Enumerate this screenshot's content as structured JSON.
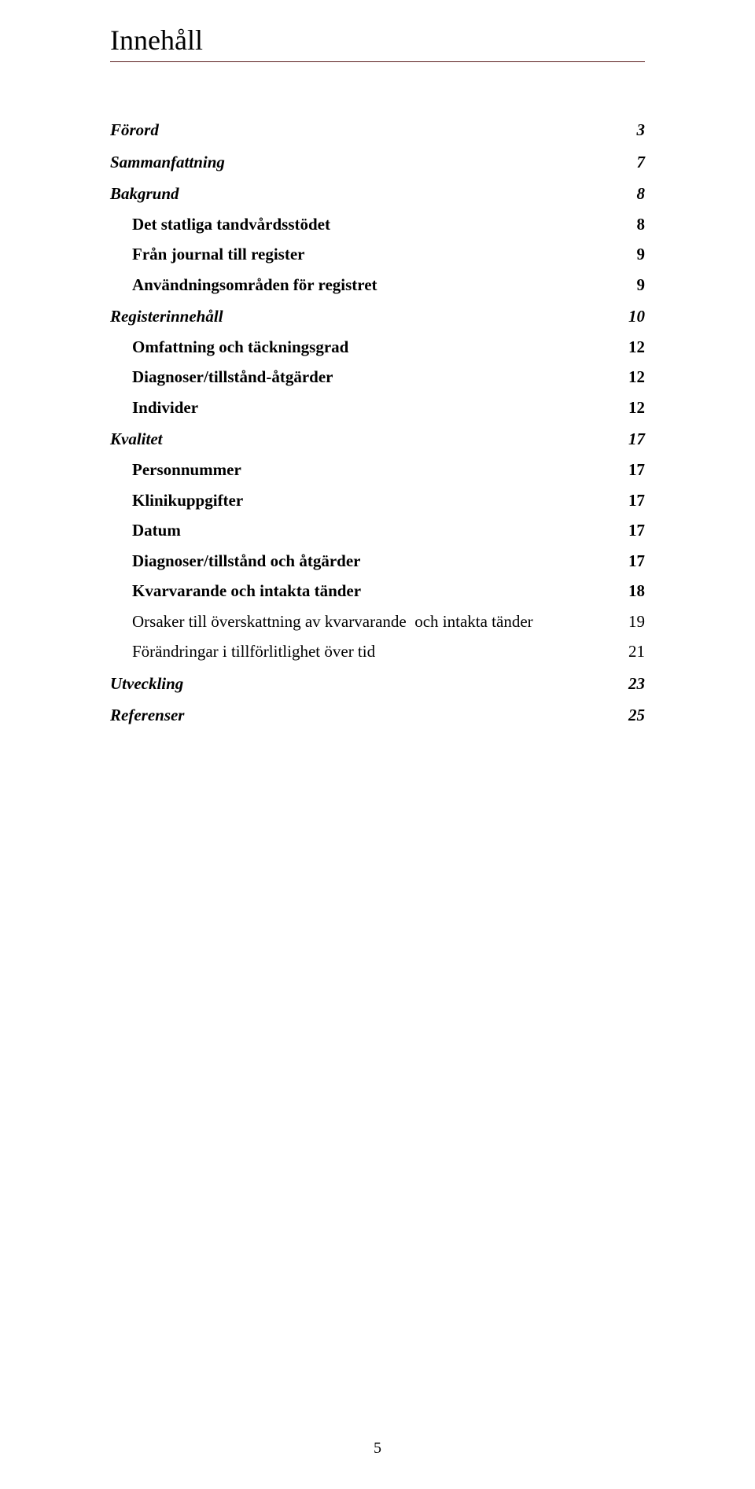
{
  "title": "Innehåll",
  "title_rule_color": "#5b1d1d",
  "page_number": "5",
  "toc": [
    {
      "level": 1,
      "label": "Förord",
      "page": "3"
    },
    {
      "level": 1,
      "label": "Sammanfattning",
      "page": "7"
    },
    {
      "level": 1,
      "label": "Bakgrund",
      "page": "8"
    },
    {
      "level": 2,
      "label": "Det statliga tandvårdsstödet",
      "page": "8"
    },
    {
      "level": 2,
      "label": "Från journal till register",
      "page": "9"
    },
    {
      "level": 2,
      "label": "Användningsområden för registret",
      "page": "9"
    },
    {
      "level": 1,
      "label": "Registerinnehåll",
      "page": "10"
    },
    {
      "level": 2,
      "label": "Omfattning och täckningsgrad",
      "page": "12"
    },
    {
      "level": 2,
      "label": "Diagnoser/tillstånd-åtgärder",
      "page": "12"
    },
    {
      "level": 2,
      "label": "Individer",
      "page": "12"
    },
    {
      "level": 1,
      "label": "Kvalitet",
      "page": "17"
    },
    {
      "level": 2,
      "label": "Personnummer",
      "page": "17"
    },
    {
      "level": 2,
      "label": "Klinikuppgifter",
      "page": "17"
    },
    {
      "level": 2,
      "label": "Datum",
      "page": "17"
    },
    {
      "level": 2,
      "label": "Diagnoser/tillstånd och åtgärder",
      "page": "17"
    },
    {
      "level": 2,
      "label": "Kvarvarande och intakta tänder",
      "page": "18"
    },
    {
      "level": 3,
      "label": "Orsaker till överskattning av kvarvarande  och intakta tänder",
      "page": "19"
    },
    {
      "level": 3,
      "label": "Förändringar i tillförlitlighet över tid",
      "page": "21"
    },
    {
      "level": 1,
      "label": "Utveckling",
      "page": "23"
    },
    {
      "level": 1,
      "label": "Referenser",
      "page": "25"
    }
  ]
}
